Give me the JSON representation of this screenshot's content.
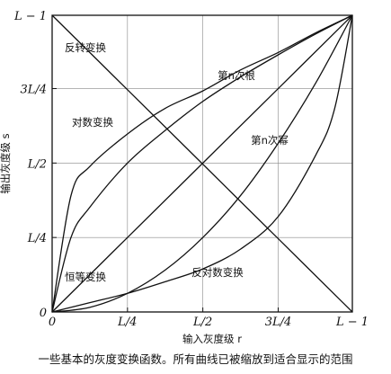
{
  "chart_data": {
    "type": "line",
    "title": "",
    "caption": "一些基本的灰度变换函数。所有曲线已被缩放到适合显示的范围",
    "xlabel": "输入灰度级 r",
    "ylabel": "输出灰度级 s",
    "L": 256,
    "xlim": [
      0,
      255
    ],
    "ylim": [
      0,
      255
    ],
    "grid": true,
    "legend": "none",
    "xtick_labels": [
      "0",
      "L/4",
      "L/2",
      "3L/4",
      "L − 1"
    ],
    "ytick_labels": [
      "0",
      "L/4",
      "L/2",
      "3L/4",
      "L − 1"
    ],
    "tick_values": [
      0,
      64,
      128,
      192,
      255
    ],
    "series": [
      {
        "name": "反转变换",
        "x": [
          0,
          64,
          128,
          192,
          255
        ],
        "y": [
          255,
          191,
          127,
          63,
          0
        ]
      },
      {
        "name": "对数变换",
        "x": [
          0,
          16,
          32,
          64,
          96,
          128,
          160,
          192,
          224,
          255
        ],
        "y": [
          0,
          100,
          125,
          153,
          175,
          190,
          208,
          223,
          240,
          255
        ]
      },
      {
        "name": "第n次根",
        "x": [
          0,
          16,
          32,
          64,
          96,
          128,
          160,
          192,
          224,
          255
        ],
        "y": [
          0,
          64,
          90,
          128,
          156,
          181,
          202,
          221,
          239,
          255
        ]
      },
      {
        "name": "恒等变换",
        "x": [
          0,
          64,
          128,
          192,
          255
        ],
        "y": [
          0,
          64,
          128,
          192,
          255
        ]
      },
      {
        "name": "第n次幂",
        "x": [
          0,
          32,
          64,
          96,
          128,
          160,
          192,
          224,
          255
        ],
        "y": [
          0,
          4,
          16,
          36,
          64,
          100,
          145,
          197,
          255
        ]
      },
      {
        "name": "反对数变换",
        "x": [
          0,
          32,
          64,
          96,
          128,
          160,
          192,
          224,
          240,
          255
        ],
        "y": [
          0,
          8,
          16,
          26,
          37,
          54,
          82,
          135,
          175,
          255
        ]
      }
    ]
  }
}
